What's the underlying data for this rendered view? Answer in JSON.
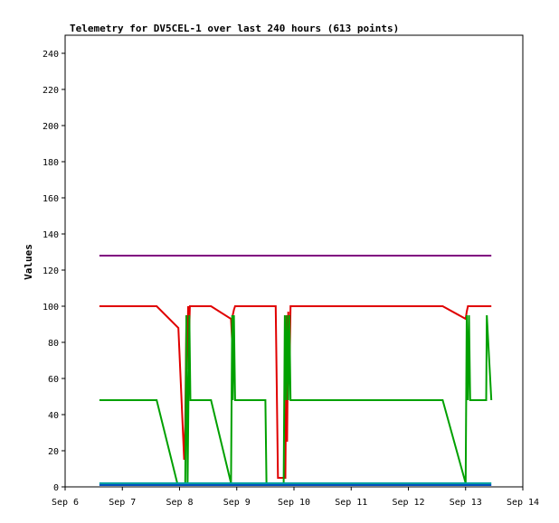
{
  "chart_data": {
    "type": "line",
    "title": "Telemetry for DV5CEL-1 over last 240 hours (613 points)",
    "xlabel": "",
    "ylabel": "Values",
    "xlim": [
      "Sep 6",
      "Sep 14"
    ],
    "ylim": [
      0,
      250
    ],
    "x_ticks": [
      "Sep 6",
      "Sep 7",
      "Sep 8",
      "Sep 9",
      "Sep 10",
      "Sep 11",
      "Sep 12",
      "Sep 13",
      "Sep 14"
    ],
    "y_ticks": [
      0,
      20,
      40,
      60,
      80,
      100,
      120,
      140,
      160,
      180,
      200,
      220,
      240
    ],
    "grid": false,
    "legend": "none",
    "x_unit": "days after Sep 6",
    "series": [
      {
        "color": "#800080",
        "x": [
          6.6,
          13.45
        ],
        "values": [
          128,
          128
        ]
      },
      {
        "color": "#e00000",
        "x": [
          6.6,
          7.6,
          7.98,
          8.08,
          8.1,
          8.12,
          8.13,
          8.15,
          8.16,
          8.18,
          8.2,
          8.55,
          8.9,
          8.92,
          8.93,
          8.95,
          8.97,
          9.5,
          9.68,
          9.72,
          9.85,
          9.87,
          9.88,
          9.9,
          9.92,
          9.94,
          10.0,
          12.6,
          13.0,
          13.02,
          13.04,
          13.08,
          13.45
        ],
        "values": [
          100,
          100,
          88,
          15,
          35,
          95,
          65,
          100,
          75,
          100,
          100,
          100,
          93,
          80,
          95,
          98,
          100,
          100,
          100,
          5,
          5,
          95,
          25,
          97,
          60,
          100,
          100,
          100,
          93,
          97,
          100,
          100,
          100
        ]
      },
      {
        "color": "#00a000",
        "x": [
          6.6,
          7.6,
          7.96,
          8.1,
          8.12,
          8.14,
          8.17,
          8.19,
          8.2,
          8.55,
          8.9,
          8.92,
          8.93,
          8.95,
          8.97,
          9.5,
          9.52,
          9.82,
          9.84,
          9.86,
          9.88,
          9.9,
          9.92,
          9.94,
          9.96,
          12.6,
          13.0,
          13.02,
          13.04,
          13.06,
          13.08,
          13.36,
          13.37,
          13.45
        ],
        "values": [
          48,
          48,
          2,
          2,
          95,
          2,
          95,
          48,
          48,
          48,
          2,
          95,
          48,
          95,
          48,
          48,
          2,
          2,
          95,
          48,
          95,
          48,
          95,
          48,
          48,
          48,
          2,
          95,
          48,
          95,
          48,
          48,
          95,
          48
        ]
      },
      {
        "color": "#0050c0",
        "x": [
          6.6,
          13.45
        ],
        "values": [
          1,
          1
        ]
      },
      {
        "color": "#00a0a0",
        "x": [
          6.6,
          13.45
        ],
        "values": [
          2,
          2
        ]
      }
    ]
  }
}
